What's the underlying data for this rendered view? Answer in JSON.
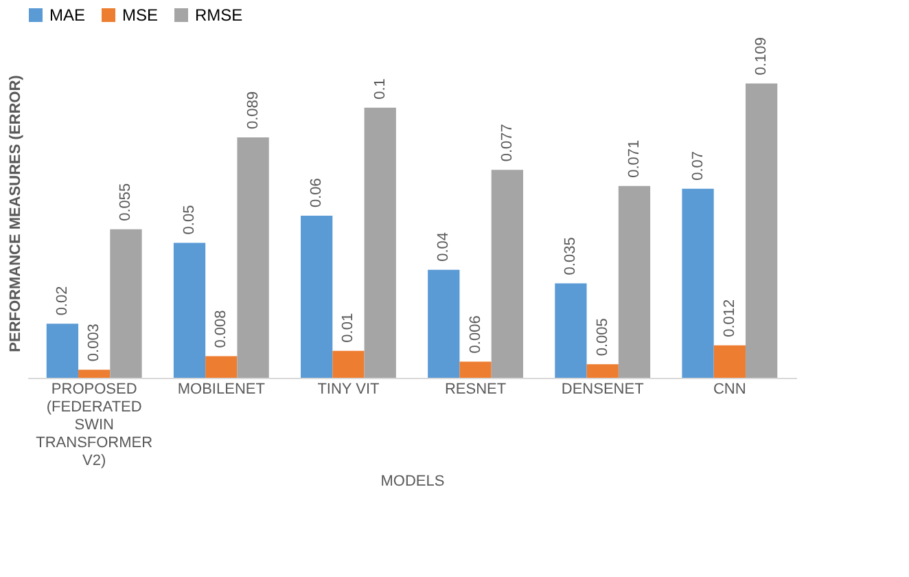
{
  "chart_data": {
    "type": "bar",
    "xlabel": "MODELS",
    "ylabel": "PERFORMANCE MEASURES (ERROR)",
    "categories": [
      "PROPOSED (FEDERATED SWIN TRANSFORMER V2)",
      "MOBILENET",
      "TINY VIT",
      "RESNET",
      "DENSENET",
      "CNN"
    ],
    "series": [
      {
        "name": "MAE",
        "color": "#5b9bd5",
        "values": [
          0.02,
          0.05,
          0.06,
          0.04,
          0.035,
          0.07
        ]
      },
      {
        "name": "MSE",
        "color": "#ed7d31",
        "values": [
          0.003,
          0.008,
          0.01,
          0.006,
          0.005,
          0.012
        ]
      },
      {
        "name": "RMSE",
        "color": "#a5a5a5",
        "values": [
          0.055,
          0.089,
          0.1,
          0.077,
          0.071,
          0.109
        ]
      }
    ],
    "data_labels": true,
    "legend": "top",
    "grid": false
  }
}
